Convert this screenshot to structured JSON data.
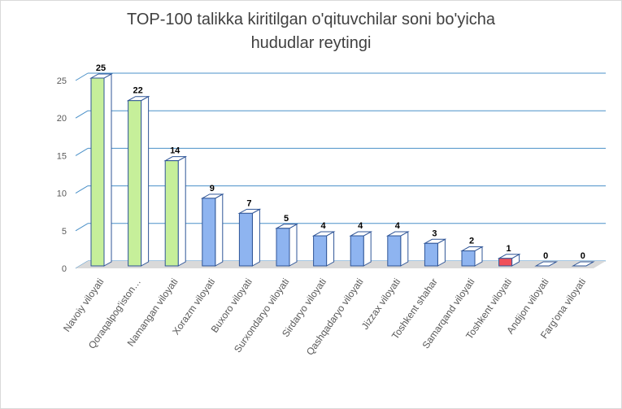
{
  "chart_data": {
    "type": "bar",
    "title_line1": "TOP-100 talikka kiritilgan o'qituvchilar soni bo'yicha",
    "title_line2": "hududlar reytingi",
    "categories": [
      "Navoiy viloyati",
      "Qoraqalpog'iston…",
      "Namangan viloyati",
      "Xorazm viloyati",
      "Buxoro viloyati",
      "Surxondaryo viloyati",
      "Sirdaryo viloyati",
      "Qashqadaryo viloyati",
      "Jizzax viloyati",
      "Toshkent shahar",
      "Samarqand viloyati",
      "Toshkent viloyati",
      "Andijon viloyati",
      "Farg'ona viloyati"
    ],
    "values": [
      25,
      22,
      14,
      9,
      7,
      5,
      4,
      4,
      4,
      3,
      2,
      1,
      0,
      0
    ],
    "bar_colors": [
      "#c6ef9a",
      "#c6ef9a",
      "#c6ef9a",
      "#8eb4f0",
      "#8eb4f0",
      "#8eb4f0",
      "#8eb4f0",
      "#8eb4f0",
      "#8eb4f0",
      "#8eb4f0",
      "#8eb4f0",
      "#f0505a",
      "#8eb4f0",
      "#8eb4f0"
    ],
    "bar_edge_color": "#2f5597",
    "ylim": [
      0,
      25
    ],
    "yticks": [
      "0",
      "5",
      "10",
      "15",
      "20",
      "25"
    ],
    "grid": true,
    "chart_style": "3d-column",
    "legend": false
  }
}
